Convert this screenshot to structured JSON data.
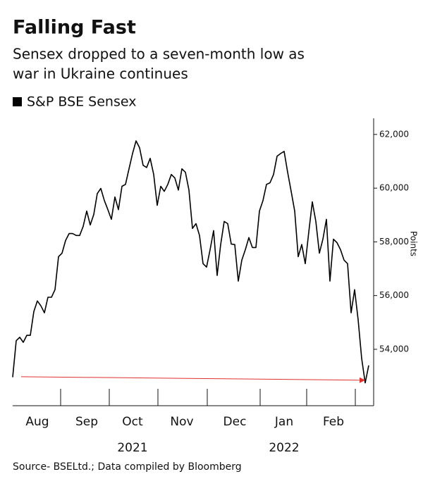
{
  "chart_data": {
    "type": "line",
    "title": "Falling Fast",
    "subtitle": [
      "Sensex dropped to a seven-month low as",
      "war in Ukraine continues"
    ],
    "y_axis_label": "Points",
    "source": "Source- BSELtd.; Data compiled by Bloomberg",
    "years": [
      "2021",
      "2022"
    ],
    "categories": [
      null,
      null,
      null,
      null,
      null,
      null,
      null,
      "Aug",
      null,
      null,
      null,
      null,
      null,
      null,
      null,
      null,
      null,
      null,
      null,
      null,
      null,
      "Sep",
      null,
      null,
      null,
      null,
      null,
      null,
      null,
      null,
      null,
      null,
      null,
      null,
      "Oct",
      null,
      null,
      null,
      null,
      null,
      null,
      null,
      null,
      null,
      null,
      null,
      null,
      null,
      "Nov",
      null,
      null,
      null,
      null,
      null,
      null,
      null,
      null,
      null,
      null,
      null,
      null,
      null,
      null,
      "Dec",
      null,
      null,
      null,
      null,
      null,
      null,
      null,
      null,
      null,
      null,
      null,
      null,
      null,
      "Jan",
      null,
      null,
      null,
      null,
      null,
      null,
      null,
      null,
      null,
      null,
      null,
      null,
      null,
      "Feb",
      null,
      null,
      null,
      null,
      null,
      null,
      null,
      null,
      null,
      null
    ],
    "series": [
      {
        "name": "S&P BSE Sensex",
        "color": "#000000",
        "values": [
          52960,
          54320,
          54450,
          54260,
          54520,
          54520,
          55410,
          55800,
          55620,
          55360,
          55940,
          55940,
          56220,
          57450,
          57580,
          58050,
          58310,
          58310,
          58240,
          58240,
          58580,
          59150,
          58630,
          59020,
          59800,
          59990,
          59540,
          59200,
          58840,
          59670,
          59200,
          60070,
          60140,
          60720,
          61290,
          61760,
          61500,
          60850,
          60770,
          61110,
          60510,
          59360,
          60070,
          59880,
          60140,
          60510,
          60380,
          59930,
          60720,
          60590,
          59930,
          58500,
          58680,
          58240,
          57190,
          57060,
          57710,
          58420,
          56750,
          57900,
          58760,
          58680,
          57920,
          57900,
          56540,
          57320,
          57710,
          58160,
          57790,
          57790,
          59150,
          59540,
          60140,
          60200,
          60510,
          61190,
          61290,
          61370,
          60590,
          59880,
          59150,
          57450,
          57900,
          57190,
          58370,
          59490,
          58760,
          57580,
          58100,
          58840,
          56540,
          58100,
          57970,
          57710,
          57320,
          57190,
          55360,
          56220,
          55100,
          53660,
          52750,
          53400
        ]
      }
    ],
    "reference_line": {
      "color": "#e03030",
      "values": [
        52980,
        52850
      ]
    },
    "ylim": [
      51900,
      62600
    ],
    "yticks": [
      {
        "value": 54000,
        "label": "54,000"
      },
      {
        "value": 56000,
        "label": "56,000"
      },
      {
        "value": 58000,
        "label": "58,000"
      },
      {
        "value": 60000,
        "label": "60,000"
      },
      {
        "value": 62000,
        "label": "62,000"
      }
    ]
  }
}
